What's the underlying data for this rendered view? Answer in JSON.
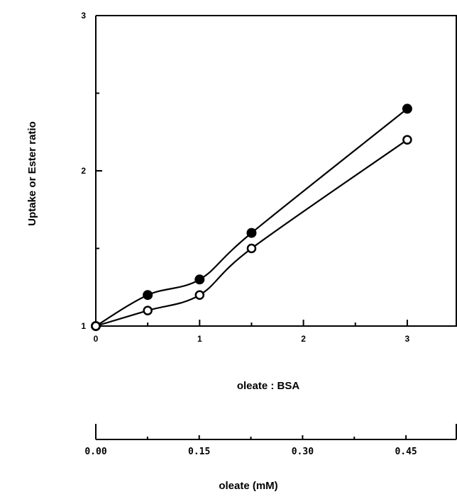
{
  "chart_data": {
    "type": "scatter",
    "title": "",
    "ylabel": "Uptake or Ester ratio",
    "xlabel": "oleate : BSA",
    "secondary_xlabel": "oleate (mM)",
    "xlim": [
      0,
      3.5
    ],
    "ylim": [
      1,
      3
    ],
    "x_ticks": [
      "0",
      "1",
      "2",
      "3"
    ],
    "y_ticks": [
      "1",
      "2",
      "3"
    ],
    "secondary_x_ticks": [
      "0.00",
      "0.15",
      "0.30",
      "0.45"
    ],
    "grid": false,
    "series": [
      {
        "marker": "filled-circle",
        "x": [
          0,
          0.5,
          1,
          1.5,
          3
        ],
        "y": [
          1.0,
          1.2,
          1.3,
          1.6,
          2.4
        ]
      },
      {
        "marker": "open-circle",
        "x": [
          0,
          0.5,
          1,
          1.5,
          3
        ],
        "y": [
          1.0,
          1.1,
          1.2,
          1.5,
          2.2
        ]
      }
    ]
  }
}
